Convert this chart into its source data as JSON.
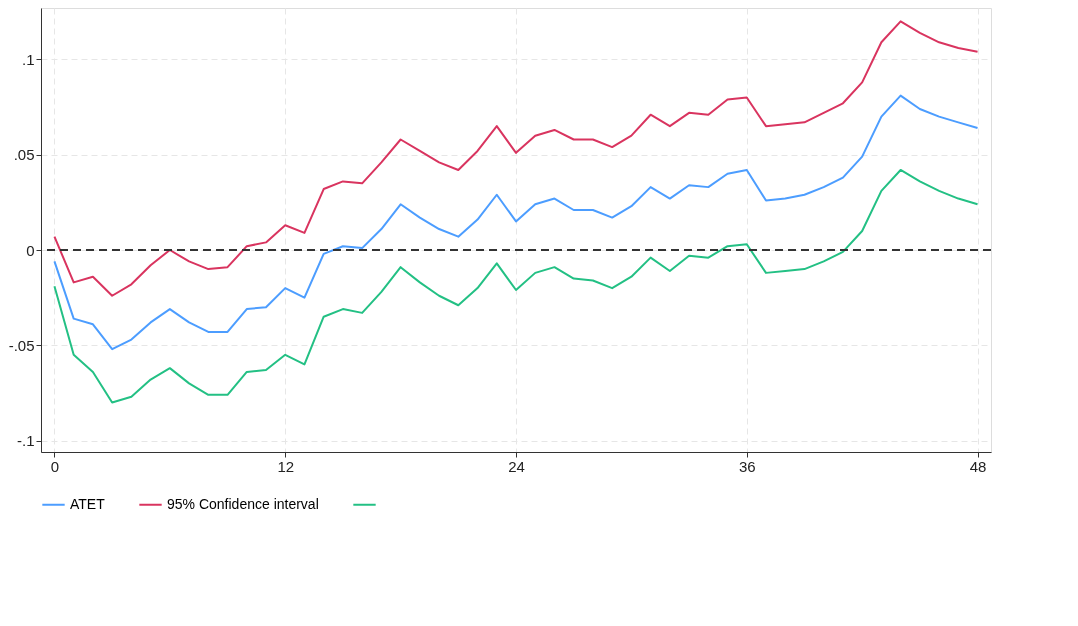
{
  "chart_data": {
    "type": "line",
    "x": [
      0,
      1,
      2,
      3,
      4,
      5,
      6,
      7,
      8,
      9,
      10,
      11,
      12,
      13,
      14,
      15,
      16,
      17,
      18,
      19,
      20,
      21,
      22,
      23,
      24,
      25,
      26,
      27,
      28,
      29,
      30,
      31,
      32,
      33,
      34,
      35,
      36,
      37,
      38,
      39,
      40,
      41,
      42,
      43,
      44,
      45,
      46,
      47,
      48
    ],
    "series": [
      {
        "name": "ATET",
        "color": "#4c9dff",
        "values": [
          -0.006,
          -0.036,
          -0.039,
          -0.052,
          -0.047,
          -0.038,
          -0.031,
          -0.038,
          -0.043,
          -0.043,
          -0.031,
          -0.03,
          -0.02,
          -0.025,
          -0.002,
          0.002,
          0.001,
          0.011,
          0.024,
          0.017,
          0.011,
          0.007,
          0.016,
          0.029,
          0.015,
          0.024,
          0.027,
          0.021,
          0.021,
          0.017,
          0.023,
          0.033,
          0.027,
          0.034,
          0.033,
          0.04,
          0.042,
          0.026,
          0.027,
          0.029,
          0.033,
          0.038,
          0.049,
          0.07,
          0.081,
          0.074,
          0.07,
          0.067,
          0.064
        ]
      },
      {
        "name": "95% Confidence interval",
        "color": "#d9345f",
        "values": [
          0.007,
          -0.017,
          -0.014,
          -0.024,
          -0.018,
          -0.008,
          0.0,
          -0.006,
          -0.01,
          -0.009,
          0.002,
          0.004,
          0.013,
          0.009,
          0.032,
          0.036,
          0.035,
          0.046,
          0.058,
          0.052,
          0.046,
          0.042,
          0.052,
          0.065,
          0.051,
          0.06,
          0.063,
          0.058,
          0.058,
          0.054,
          0.06,
          0.071,
          0.065,
          0.072,
          0.071,
          0.079,
          0.08,
          0.065,
          0.066,
          0.067,
          0.072,
          0.077,
          0.088,
          0.109,
          0.12,
          0.114,
          0.109,
          0.106,
          0.104
        ]
      },
      {
        "color": "#23c084",
        "values": [
          -0.019,
          -0.055,
          -0.064,
          -0.08,
          -0.077,
          -0.068,
          -0.062,
          -0.07,
          -0.076,
          -0.076,
          -0.064,
          -0.063,
          -0.055,
          -0.06,
          -0.035,
          -0.031,
          -0.033,
          -0.022,
          -0.009,
          -0.017,
          -0.024,
          -0.029,
          -0.02,
          -0.007,
          -0.021,
          -0.012,
          -0.009,
          -0.015,
          -0.016,
          -0.02,
          -0.014,
          -0.004,
          -0.011,
          -0.003,
          -0.004,
          0.002,
          0.003,
          -0.012,
          -0.011,
          -0.01,
          -0.006,
          -0.001,
          0.01,
          0.031,
          0.042,
          0.036,
          0.031,
          0.027,
          0.024
        ]
      }
    ],
    "xlim": [
      -0.7,
      48.7
    ],
    "xticks": [
      0,
      12,
      24,
      36,
      48
    ],
    "ylim": [
      -0.106,
      0.127
    ],
    "yticks": [
      {
        "value": -0.1,
        "label": "-.1"
      },
      {
        "value": -0.05,
        "label": "-.05"
      },
      0,
      {
        "value": 0.05,
        "label": ".05"
      },
      {
        "value": 0.1,
        "label": ".1"
      }
    ],
    "ref_lines": [
      {
        "axis": "y",
        "value": 0,
        "color": "#333333",
        "line_style": "dashed"
      }
    ],
    "grid": true,
    "legend": "bottom",
    "line_style": "solid",
    "marker": "none"
  }
}
